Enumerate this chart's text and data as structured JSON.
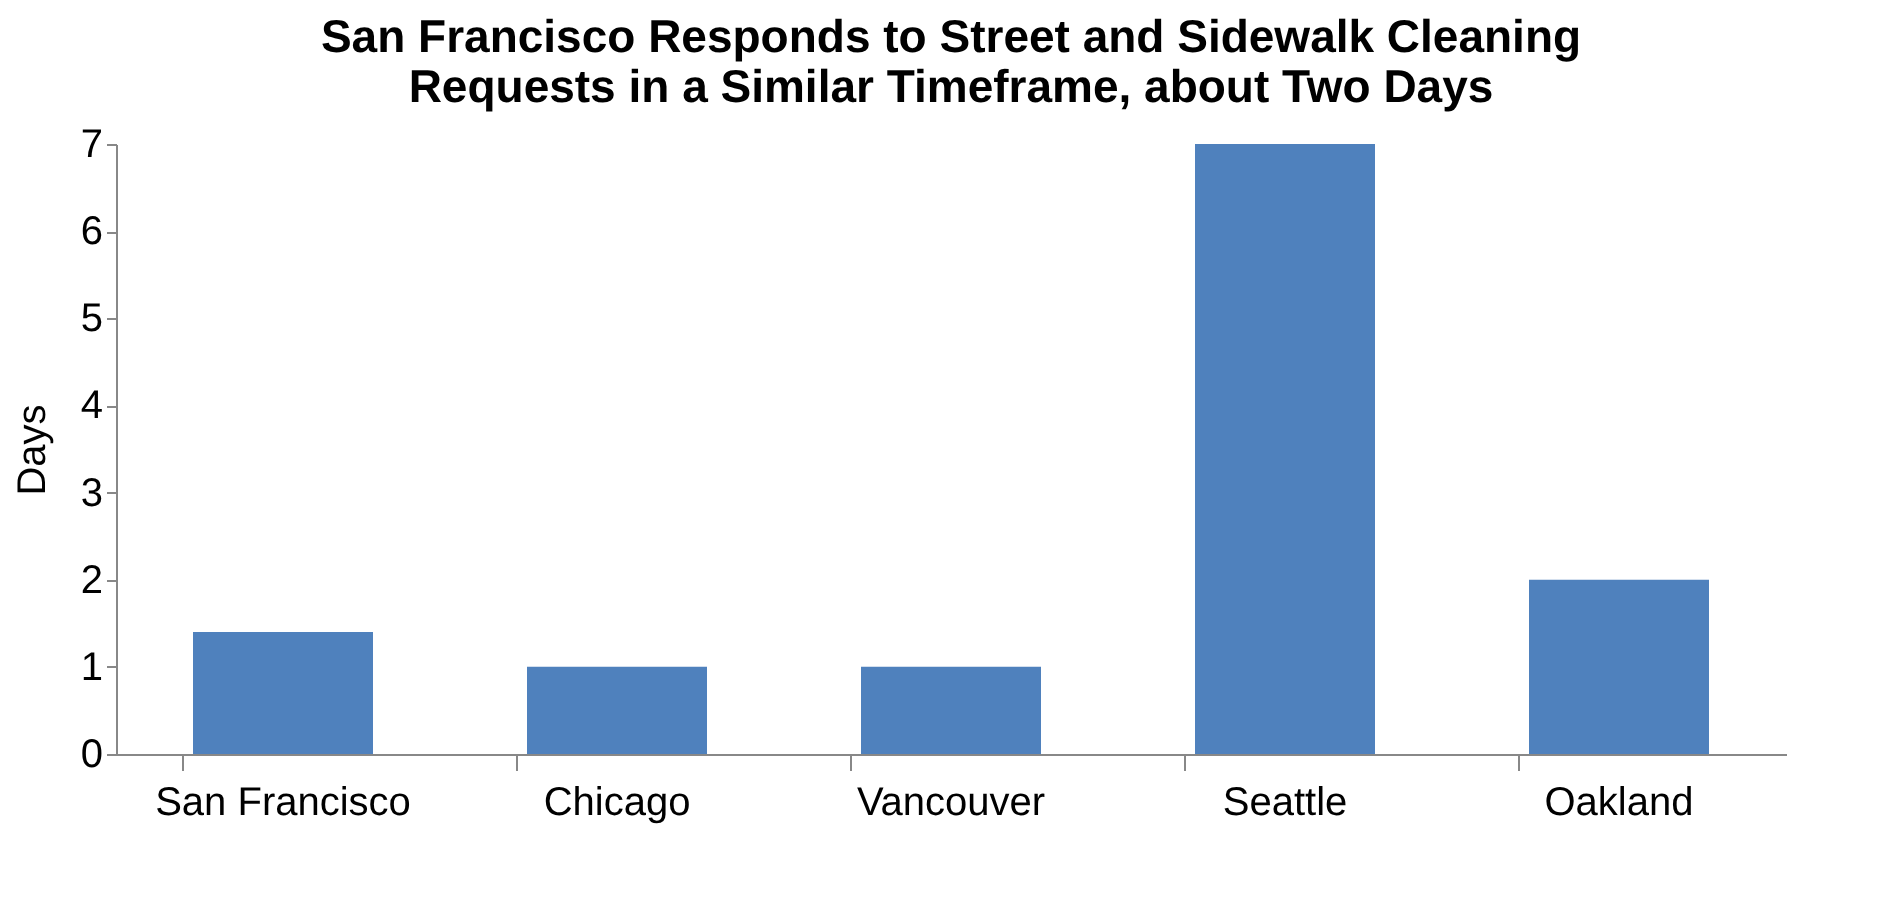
{
  "chart_data": {
    "type": "bar",
    "title": [
      "San Francisco Responds to Street and Sidewalk Cleaning",
      "Requests in a  Similar Timeframe, about Two Days"
    ],
    "ylabel": "Days",
    "categories": [
      "San Francisco",
      "Chicago",
      "Vancouver",
      "Seattle",
      "Oakland"
    ],
    "values": [
      1.4,
      1.0,
      1.0,
      7.0,
      2.0
    ],
    "color": "#4f81bd",
    "ylim": [
      0,
      7
    ],
    "yticks": [
      0,
      1,
      2,
      3,
      4,
      5,
      6,
      7
    ],
    "grid": false
  }
}
